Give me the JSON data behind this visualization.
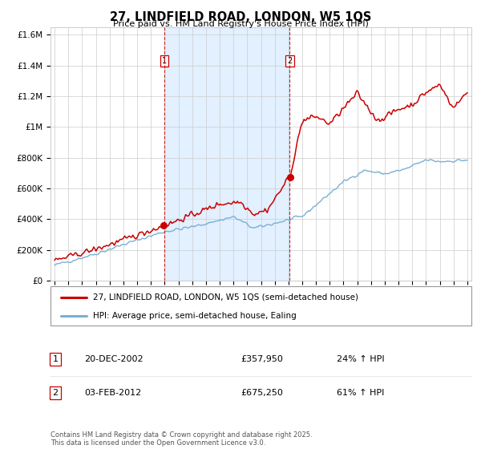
{
  "title": "27, LINDFIELD ROAD, LONDON, W5 1QS",
  "subtitle": "Price paid vs. HM Land Registry's House Price Index (HPI)",
  "legend_line1": "27, LINDFIELD ROAD, LONDON, W5 1QS (semi-detached house)",
  "legend_line2": "HPI: Average price, semi-detached house, Ealing",
  "transaction1_label": "1",
  "transaction1_date": "20-DEC-2002",
  "transaction1_price": "£357,950",
  "transaction1_hpi": "24% ↑ HPI",
  "transaction2_label": "2",
  "transaction2_date": "03-FEB-2012",
  "transaction2_price": "£675,250",
  "transaction2_hpi": "61% ↑ HPI",
  "footer": "Contains HM Land Registry data © Crown copyright and database right 2025.\nThis data is licensed under the Open Government Licence v3.0.",
  "hpi_line_color": "#7ab0d4",
  "property_color": "#cc0000",
  "vline_color": "#cc0000",
  "shade_color": "#ddeeff",
  "ylim": [
    0,
    1650000
  ],
  "yticks": [
    0,
    200000,
    400000,
    600000,
    800000,
    1000000,
    1200000,
    1400000,
    1600000
  ],
  "ytick_labels": [
    "£0",
    "£200K",
    "£400K",
    "£600K",
    "£800K",
    "£1M",
    "£1.2M",
    "£1.4M",
    "£1.6M"
  ],
  "start_year": 1995,
  "end_year": 2025,
  "transaction1_year": 2002.97,
  "transaction2_year": 2012.09,
  "prop_val1": 357950,
  "prop_val2": 675250
}
